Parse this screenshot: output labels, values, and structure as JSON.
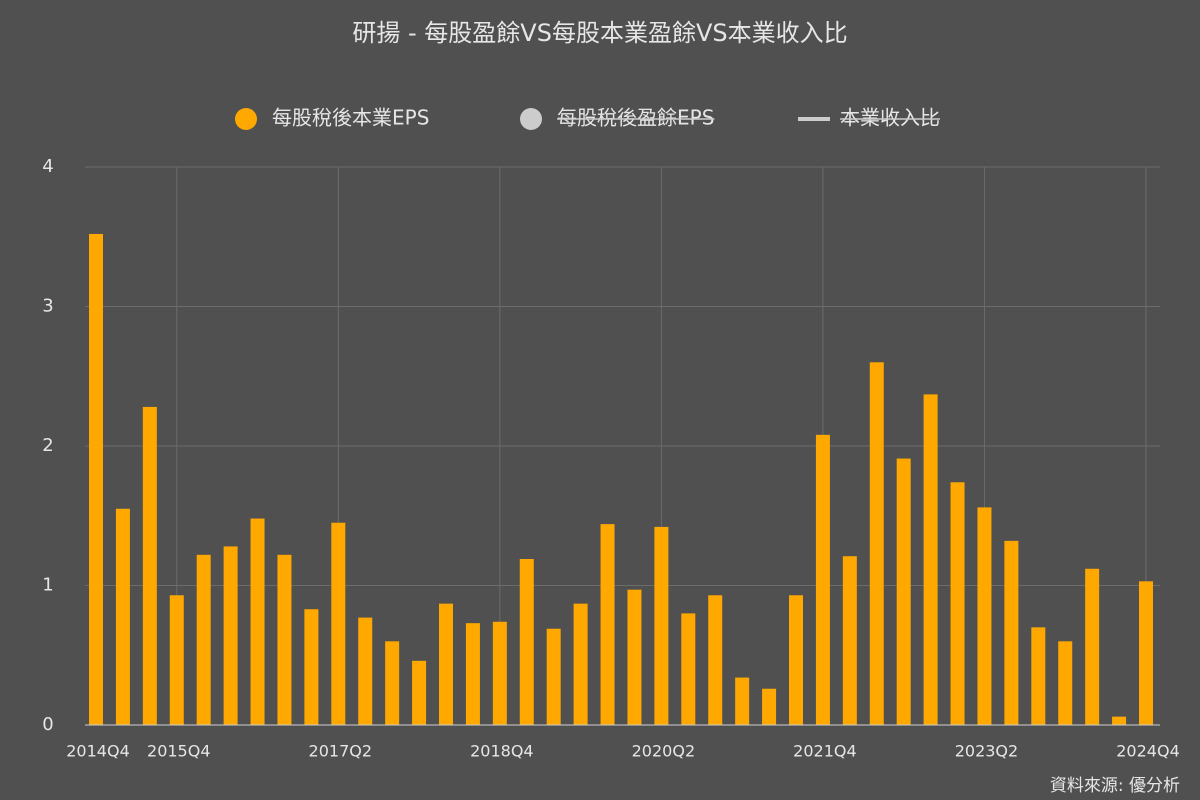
{
  "chart_data": {
    "type": "bar",
    "title": "研揚 - 每股盈餘VS每股本業盈餘VS本業收入比",
    "source": "資料來源: 優分析",
    "categories": [
      "2014Q4",
      null,
      null,
      "2015Q4",
      null,
      null,
      null,
      null,
      null,
      "2017Q2",
      null,
      null,
      null,
      null,
      null,
      "2018Q4",
      null,
      null,
      null,
      null,
      null,
      "2020Q2",
      null,
      null,
      null,
      null,
      null,
      "2021Q4",
      null,
      null,
      null,
      null,
      null,
      "2023Q2",
      null,
      null,
      null,
      null,
      null,
      "2024Q4"
    ],
    "series": [
      {
        "name": "每股稅後本業EPS",
        "color": "#ffa800",
        "visible": true,
        "values": [
          3.52,
          1.55,
          2.28,
          0.93,
          1.22,
          1.28,
          1.48,
          1.22,
          0.83,
          1.45,
          0.77,
          0.6,
          0.46,
          0.87,
          0.73,
          0.74,
          1.19,
          0.69,
          0.87,
          1.44,
          0.97,
          1.42,
          0.8,
          0.93,
          0.34,
          0.26,
          0.93,
          2.08,
          1.21,
          2.6,
          1.91,
          2.37,
          1.74,
          1.56,
          1.32,
          0.7,
          0.6,
          1.12,
          0.06,
          1.03
        ]
      },
      {
        "name": "每股稅後盈餘EPS",
        "color": "#cccccc",
        "visible": false
      },
      {
        "name": "本業收入比",
        "color": "#cccccc",
        "visible": false,
        "marker": "line"
      }
    ],
    "ylim": [
      0,
      4
    ],
    "yticks": [
      0,
      1,
      2,
      3,
      4
    ],
    "grid": true
  }
}
